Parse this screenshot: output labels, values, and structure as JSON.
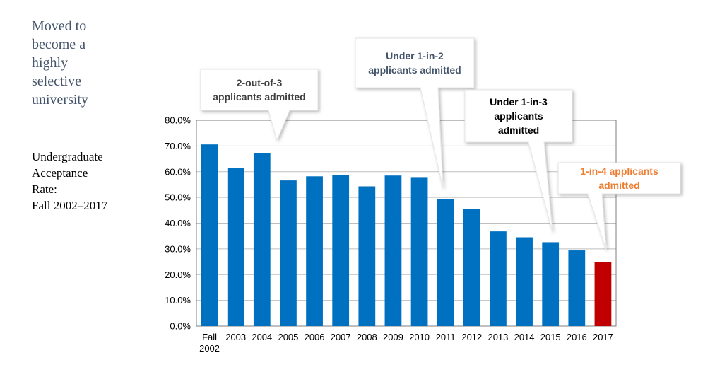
{
  "headline": [
    "Moved to",
    "become a",
    "highly",
    "selective",
    "university"
  ],
  "subhead": [
    "Undergraduate",
    "Acceptance",
    "Rate:",
    "Fall 2002–2017"
  ],
  "colors": {
    "bar": "#0070c0",
    "highlight_bar": "#c00000",
    "headline": "#44546a",
    "callout_dark": "#404040",
    "callout_navy": "#44546a",
    "callout_black": "#000000",
    "callout_orange": "#ed7d31"
  },
  "callouts": [
    {
      "lines": [
        "2-out-of-3",
        "applicants admitted"
      ],
      "color": "#404040",
      "points_to": "2004"
    },
    {
      "lines": [
        "Under 1-in-2",
        "applicants admitted"
      ],
      "color": "#44546a",
      "points_to": "2011"
    },
    {
      "lines": [
        "Under 1-in-3",
        "applicants",
        "admitted"
      ],
      "color": "#000000",
      "points_to": "2015"
    },
    {
      "lines": [
        "1-in-4 applicants",
        "admitted"
      ],
      "color": "#ed7d31",
      "points_to": "2017"
    }
  ],
  "chart_data": {
    "type": "bar",
    "categories": [
      [
        "Fall",
        "2002"
      ],
      [
        "2003"
      ],
      [
        "2004"
      ],
      [
        "2005"
      ],
      [
        "2006"
      ],
      [
        "2007"
      ],
      [
        "2008"
      ],
      [
        "2009"
      ],
      [
        "2010"
      ],
      [
        "2011"
      ],
      [
        "2012"
      ],
      [
        "2013"
      ],
      [
        "2014"
      ],
      [
        "2015"
      ],
      [
        "2016"
      ],
      [
        "2017"
      ]
    ],
    "values": [
      70.6,
      61.3,
      67.1,
      56.6,
      58.2,
      58.6,
      54.3,
      58.5,
      57.9,
      49.3,
      45.5,
      36.8,
      34.5,
      32.6,
      29.4,
      24.9
    ],
    "highlight_index": 15,
    "yticks": [
      "80.0%",
      "70.0%",
      "60.0%",
      "50.0%",
      "40.0%",
      "30.0%",
      "20.0%",
      "10.0%",
      "0.0%"
    ],
    "ylim": [
      0,
      80
    ],
    "grid": true,
    "title": "",
    "xlabel": "",
    "ylabel": ""
  }
}
